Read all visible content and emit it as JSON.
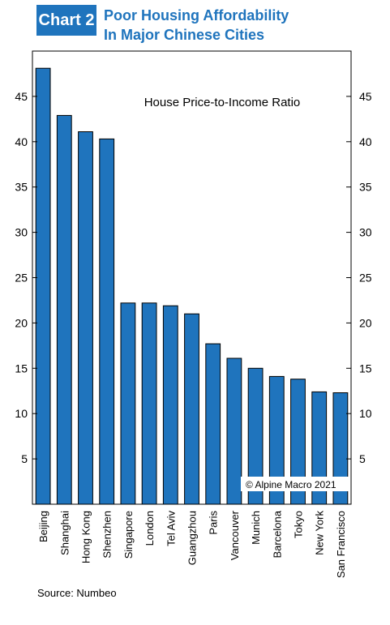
{
  "header": {
    "badge": "Chart 2",
    "title_line1": "Poor Housing Affordability",
    "title_line2": "In Major Chinese Cities"
  },
  "source": "Source: Numbeo",
  "copyright": "© Alpine Macro 2021",
  "colors": {
    "accent": "#1f74bd",
    "bar": "#1f74bd"
  },
  "chart_data": {
    "type": "bar",
    "title": "House Price-to-Income Ratio",
    "xlabel": "",
    "ylabel": "",
    "ylim": [
      0,
      50
    ],
    "yticks": [
      5,
      10,
      15,
      20,
      25,
      30,
      35,
      40,
      45
    ],
    "grid": false,
    "categories": [
      "Beijing",
      "Shanghai",
      "Hong Kong",
      "Shenzhen",
      "Singapore",
      "London",
      "Tel Aviv",
      "Guangzhou",
      "Paris",
      "Vancouver",
      "Munich",
      "Barcelona",
      "Tokyo",
      "New York",
      "San Francisco"
    ],
    "values": [
      48.1,
      42.9,
      41.1,
      40.3,
      22.2,
      22.2,
      21.9,
      21.0,
      17.7,
      16.1,
      15.0,
      14.1,
      13.8,
      12.4,
      12.3
    ]
  }
}
